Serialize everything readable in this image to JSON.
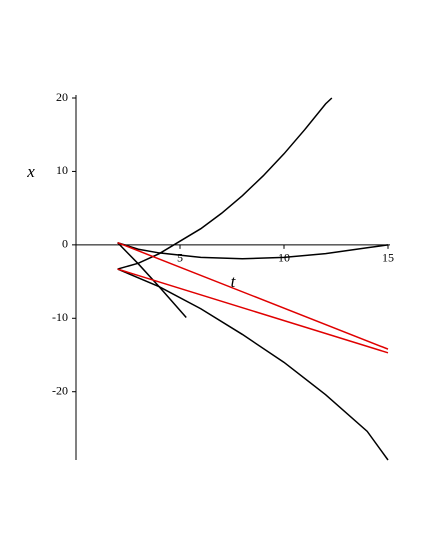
{
  "chart_data": {
    "type": "line",
    "x_label": "t",
    "y_label": "x",
    "xlim": [
      0,
      15
    ],
    "ylim": [
      -29.3,
      20
    ],
    "xticks": [
      5,
      10,
      15
    ],
    "yticks": [
      -20,
      -10,
      0,
      10,
      20
    ],
    "series": [
      {
        "color": "#000000",
        "x": [
          2,
          3,
          4,
          5,
          6,
          7,
          8,
          9,
          10,
          11,
          12,
          12.3
        ],
        "values": [
          -3.3,
          -2.5,
          -1.2,
          0.5,
          2.2,
          4.3,
          6.7,
          9.4,
          12.4,
          15.7,
          19.2,
          20
        ]
      },
      {
        "color": "#000000",
        "x": [
          2,
          3,
          4,
          6,
          8,
          10,
          12,
          14,
          15
        ],
        "values": [
          0.3,
          -0.6,
          -1.1,
          -1.7,
          -1.9,
          -1.7,
          -1.2,
          -0.4,
          0
        ]
      },
      {
        "color": "#000000",
        "x": [
          2,
          3,
          4,
          5.3
        ],
        "values": [
          0.3,
          -2.6,
          -5.7,
          -9.9
        ]
      },
      {
        "color": "#000000",
        "x": [
          2,
          4,
          6,
          8,
          10,
          12,
          14,
          15
        ],
        "values": [
          -3.3,
          -5.7,
          -8.7,
          -12.2,
          -16,
          -20.4,
          -25.4,
          -29.3
        ]
      },
      {
        "color": "#e00000",
        "x": [
          2,
          15
        ],
        "values": [
          0.3,
          -14.2
        ]
      },
      {
        "color": "#e00000",
        "x": [
          2,
          15
        ],
        "values": [
          -3.3,
          -14.7
        ]
      }
    ]
  }
}
